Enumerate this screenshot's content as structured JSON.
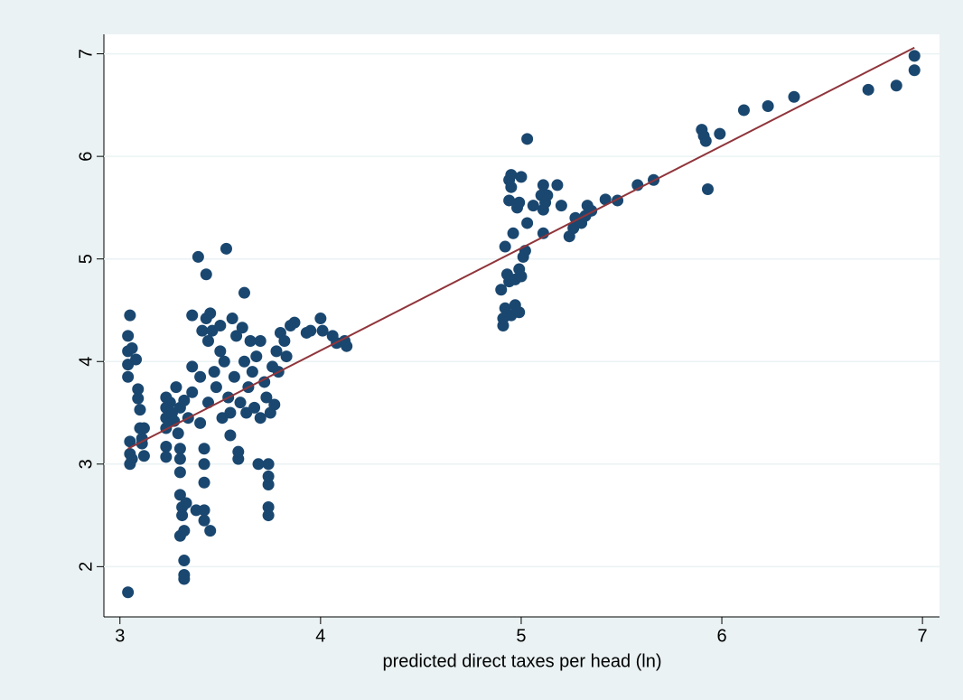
{
  "chart_data": {
    "type": "scatter",
    "xlabel": "predicted direct taxes per head (ln)",
    "xlim": [
      2.92,
      7.085
    ],
    "ylim": [
      1.51,
      7.19
    ],
    "xticks": [
      3,
      4,
      5,
      6,
      7
    ],
    "yticks": [
      2,
      3,
      4,
      5,
      6,
      7
    ],
    "grid": true,
    "points": {
      "color": "#1a476f",
      "x": [
        3.04,
        3.04,
        3.04,
        3.04,
        3.04,
        3.05,
        3.06,
        3.05,
        3.05,
        3.05,
        3.06,
        3.08,
        3.09,
        3.09,
        3.1,
        3.1,
        3.11,
        3.12,
        3.12,
        3.11,
        3.23,
        3.23,
        3.23,
        3.23,
        3.23,
        3.23,
        3.25,
        3.26,
        3.27,
        3.28,
        3.29,
        3.3,
        3.3,
        3.3,
        3.3,
        3.31,
        3.31,
        3.3,
        3.32,
        3.32,
        3.32,
        3.32,
        3.33,
        3.3,
        3.32,
        3.34,
        3.36,
        3.36,
        3.36,
        3.38,
        3.39,
        3.4,
        3.4,
        3.41,
        3.42,
        3.42,
        3.42,
        3.42,
        3.42,
        3.43,
        3.43,
        3.44,
        3.44,
        3.45,
        3.45,
        3.46,
        3.47,
        3.48,
        3.5,
        3.5,
        3.51,
        3.52,
        3.53,
        3.54,
        3.55,
        3.55,
        3.56,
        3.57,
        3.58,
        3.59,
        3.59,
        3.6,
        3.61,
        3.62,
        3.62,
        3.63,
        3.64,
        3.65,
        3.66,
        3.67,
        3.68,
        3.69,
        3.7,
        3.7,
        3.72,
        3.73,
        3.74,
        3.74,
        3.74,
        3.74,
        3.74,
        3.75,
        3.76,
        3.77,
        3.78,
        3.79,
        3.8,
        3.82,
        3.83,
        3.85,
        3.87,
        3.93,
        3.95,
        4.0,
        4.01,
        4.06,
        4.08,
        4.12,
        4.13,
        4.9,
        4.91,
        4.91,
        4.92,
        4.92,
        4.93,
        4.94,
        4.94,
        4.94,
        4.95,
        4.95,
        4.95,
        4.96,
        4.97,
        4.97,
        4.98,
        4.99,
        4.99,
        4.99,
        5.0,
        5.0,
        5.01,
        5.02,
        5.03,
        5.03,
        5.06,
        5.1,
        5.11,
        5.11,
        5.12,
        5.11,
        5.13,
        5.18,
        5.2,
        5.24,
        5.26,
        5.27,
        5.3,
        5.32,
        5.33,
        5.35,
        5.42,
        5.48,
        5.58,
        5.66,
        5.9,
        5.91,
        5.92,
        5.93,
        5.99,
        6.11,
        6.23,
        6.36,
        6.73,
        6.87,
        6.96,
        6.96
      ],
      "y": [
        1.75,
        3.85,
        3.97,
        4.1,
        4.25,
        4.45,
        4.13,
        3.22,
        3.1,
        3.0,
        3.05,
        4.02,
        3.73,
        3.64,
        3.53,
        3.35,
        3.25,
        3.35,
        3.08,
        3.2,
        3.65,
        3.55,
        3.45,
        3.35,
        3.17,
        3.07,
        3.6,
        3.5,
        3.42,
        3.75,
        3.3,
        3.15,
        3.05,
        2.92,
        2.7,
        2.58,
        2.5,
        2.3,
        2.35,
        2.06,
        1.92,
        1.88,
        2.62,
        3.55,
        3.62,
        3.45,
        3.7,
        3.95,
        4.45,
        2.55,
        5.02,
        3.85,
        3.4,
        4.3,
        2.45,
        2.55,
        2.82,
        3.0,
        3.15,
        4.85,
        4.42,
        4.2,
        3.6,
        2.35,
        4.47,
        4.3,
        3.9,
        3.75,
        4.1,
        4.35,
        3.45,
        4.0,
        5.1,
        3.65,
        3.28,
        3.5,
        4.42,
        3.85,
        4.25,
        3.05,
        3.12,
        3.6,
        4.33,
        4.67,
        4.0,
        3.5,
        3.75,
        4.2,
        3.9,
        3.55,
        4.05,
        3.0,
        3.45,
        4.2,
        3.8,
        3.65,
        2.5,
        2.58,
        2.8,
        2.88,
        3.0,
        3.5,
        3.95,
        3.58,
        4.1,
        3.9,
        4.28,
        4.2,
        4.05,
        4.35,
        4.38,
        4.28,
        4.3,
        4.42,
        4.3,
        4.25,
        4.18,
        4.2,
        4.15,
        4.7,
        4.35,
        4.42,
        4.52,
        5.12,
        4.85,
        4.78,
        5.57,
        5.77,
        5.82,
        5.7,
        4.45,
        5.25,
        4.55,
        4.8,
        5.5,
        5.55,
        4.48,
        4.9,
        5.8,
        4.83,
        5.02,
        5.08,
        5.35,
        6.17,
        5.52,
        5.62,
        5.72,
        5.48,
        5.55,
        5.25,
        5.62,
        5.72,
        5.52,
        5.22,
        5.3,
        5.4,
        5.35,
        5.42,
        5.52,
        5.47,
        5.58,
        5.57,
        5.72,
        5.77,
        6.26,
        6.2,
        6.15,
        5.68,
        6.22,
        6.45,
        6.49,
        6.58,
        6.65,
        6.69,
        6.84,
        6.98
      ]
    },
    "fit": {
      "color": "#90353b",
      "x": [
        3.04,
        6.96
      ],
      "y": [
        3.15,
        7.06
      ]
    }
  }
}
